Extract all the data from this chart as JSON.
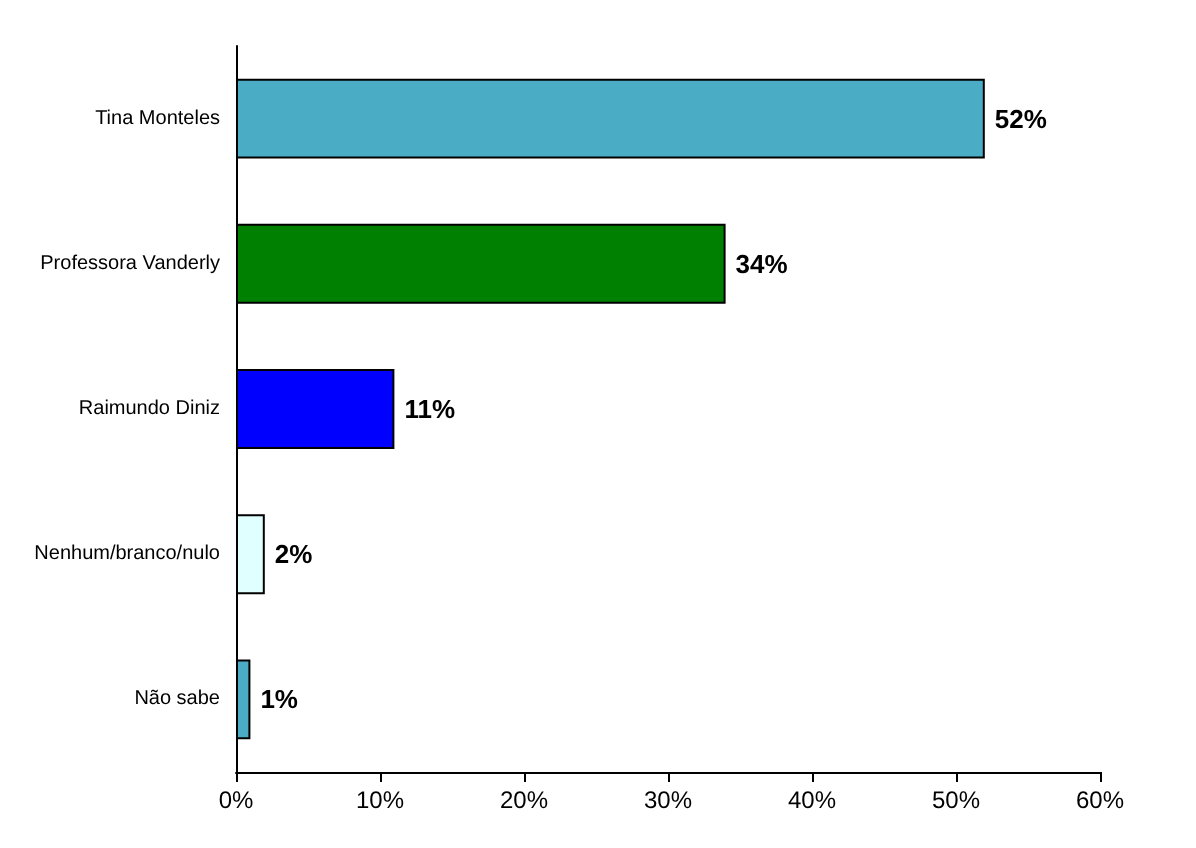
{
  "chart_data": {
    "type": "bar",
    "orientation": "horizontal",
    "categories": [
      "Tina Monteles",
      "Professora Vanderly",
      "Raimundo Diniz",
      "Nenhum/branco/nulo",
      "Não sabe"
    ],
    "values": [
      52,
      34,
      11,
      2,
      1
    ],
    "colors": [
      "#4bacc6",
      "#008000",
      "#0000ff",
      "#e0ffff",
      "#4bacc6"
    ],
    "value_labels": [
      "52%",
      "34%",
      "11%",
      "2%",
      "1%"
    ],
    "xlim": [
      0,
      60
    ],
    "xticks": [
      {
        "value": 0,
        "label": "0%"
      },
      {
        "value": 10,
        "label": "10%"
      },
      {
        "value": 20,
        "label": "20%"
      },
      {
        "value": 30,
        "label": "30%"
      },
      {
        "value": 40,
        "label": "40%"
      },
      {
        "value": 50,
        "label": "50%"
      },
      {
        "value": 60,
        "label": "60%"
      }
    ],
    "grid": false
  }
}
